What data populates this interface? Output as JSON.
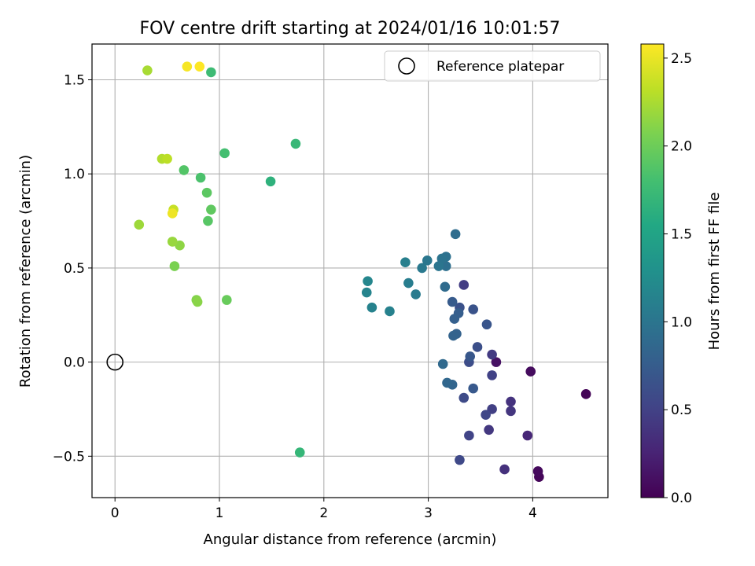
{
  "chart_data": {
    "type": "scatter",
    "title": "FOV centre drift starting at 2024/01/16 10:01:57",
    "xlabel": "Angular distance from reference (arcmin)",
    "ylabel": "Rotation from reference (arcmin)",
    "xlim": [
      -0.22,
      4.72
    ],
    "ylim": [
      -0.72,
      1.69
    ],
    "x_ticks": [
      0,
      1,
      2,
      3,
      4
    ],
    "x_tick_labels": [
      "0",
      "1",
      "2",
      "3",
      "4"
    ],
    "y_ticks": [
      -0.5,
      0.0,
      0.5,
      1.0,
      1.5
    ],
    "y_tick_labels": [
      "−0.5",
      "0.0",
      "0.5",
      "1.0",
      "1.5"
    ],
    "grid": true,
    "legend": {
      "placement": "top-right",
      "entries": [
        "Reference platepar"
      ]
    },
    "reference_point": {
      "x": 0,
      "y": 0
    },
    "colorbar": {
      "label": "Hours from first FF file",
      "colormap": "viridis",
      "range": [
        0,
        2.58
      ],
      "ticks": [
        0.0,
        0.5,
        1.0,
        1.5,
        2.0,
        2.5
      ],
      "tick_labels": [
        "0.0",
        "0.5",
        "1.0",
        "1.5",
        "2.0",
        "2.5"
      ]
    },
    "points": [
      {
        "x": 4.51,
        "y": -0.17,
        "c": 0.02
      },
      {
        "x": 4.06,
        "y": -0.61,
        "c": 0.04
      },
      {
        "x": 4.05,
        "y": -0.58,
        "c": 0.06
      },
      {
        "x": 3.98,
        "y": -0.05,
        "c": 0.08
      },
      {
        "x": 3.65,
        "y": 0.0,
        "c": 0.12
      },
      {
        "x": 3.95,
        "y": -0.39,
        "c": 0.28
      },
      {
        "x": 3.73,
        "y": -0.57,
        "c": 0.36
      },
      {
        "x": 3.79,
        "y": -0.21,
        "c": 0.38
      },
      {
        "x": 3.79,
        "y": -0.26,
        "c": 0.4
      },
      {
        "x": 3.58,
        "y": -0.36,
        "c": 0.42
      },
      {
        "x": 3.61,
        "y": 0.04,
        "c": 0.44
      },
      {
        "x": 3.34,
        "y": 0.41,
        "c": 0.46
      },
      {
        "x": 3.61,
        "y": -0.25,
        "c": 0.48
      },
      {
        "x": 3.61,
        "y": -0.07,
        "c": 0.5
      },
      {
        "x": 3.39,
        "y": -0.39,
        "c": 0.52
      },
      {
        "x": 3.55,
        "y": -0.28,
        "c": 0.54
      },
      {
        "x": 3.3,
        "y": -0.52,
        "c": 0.56
      },
      {
        "x": 3.34,
        "y": -0.19,
        "c": 0.58
      },
      {
        "x": 3.39,
        "y": 0.0,
        "c": 0.6
      },
      {
        "x": 3.47,
        "y": 0.08,
        "c": 0.62
      },
      {
        "x": 3.3,
        "y": 0.29,
        "c": 0.64
      },
      {
        "x": 3.43,
        "y": 0.28,
        "c": 0.66
      },
      {
        "x": 3.56,
        "y": 0.2,
        "c": 0.68
      },
      {
        "x": 3.4,
        "y": 0.03,
        "c": 0.7
      },
      {
        "x": 3.43,
        "y": -0.14,
        "c": 0.72
      },
      {
        "x": 3.23,
        "y": 0.32,
        "c": 0.74
      },
      {
        "x": 3.29,
        "y": 0.26,
        "c": 0.76
      },
      {
        "x": 3.25,
        "y": 0.23,
        "c": 0.78
      },
      {
        "x": 3.27,
        "y": 0.15,
        "c": 0.8
      },
      {
        "x": 3.24,
        "y": 0.14,
        "c": 0.82
      },
      {
        "x": 3.23,
        "y": -0.12,
        "c": 0.84
      },
      {
        "x": 3.18,
        "y": -0.11,
        "c": 0.86
      },
      {
        "x": 3.14,
        "y": -0.01,
        "c": 0.88
      },
      {
        "x": 3.16,
        "y": 0.4,
        "c": 0.9
      },
      {
        "x": 3.26,
        "y": 0.68,
        "c": 0.92
      },
      {
        "x": 3.17,
        "y": 0.51,
        "c": 0.94
      },
      {
        "x": 3.17,
        "y": 0.56,
        "c": 0.96
      },
      {
        "x": 3.13,
        "y": 0.55,
        "c": 0.98
      },
      {
        "x": 3.1,
        "y": 0.51,
        "c": 1.0
      },
      {
        "x": 2.99,
        "y": 0.54,
        "c": 1.02
      },
      {
        "x": 2.94,
        "y": 0.5,
        "c": 1.04
      },
      {
        "x": 2.88,
        "y": 0.36,
        "c": 1.06
      },
      {
        "x": 2.81,
        "y": 0.42,
        "c": 1.08
      },
      {
        "x": 2.78,
        "y": 0.53,
        "c": 1.1
      },
      {
        "x": 2.63,
        "y": 0.27,
        "c": 1.12
      },
      {
        "x": 2.46,
        "y": 0.29,
        "c": 1.14
      },
      {
        "x": 2.41,
        "y": 0.37,
        "c": 1.16
      },
      {
        "x": 2.42,
        "y": 0.43,
        "c": 1.18
      },
      {
        "x": 1.49,
        "y": 0.96,
        "c": 1.65
      },
      {
        "x": 1.77,
        "y": -0.48,
        "c": 1.7
      },
      {
        "x": 1.73,
        "y": 1.16,
        "c": 1.72
      },
      {
        "x": 0.92,
        "y": 1.54,
        "c": 1.76
      },
      {
        "x": 1.05,
        "y": 1.11,
        "c": 1.8
      },
      {
        "x": 0.82,
        "y": 0.98,
        "c": 1.84
      },
      {
        "x": 0.66,
        "y": 1.02,
        "c": 1.88
      },
      {
        "x": 0.89,
        "y": 0.75,
        "c": 1.9
      },
      {
        "x": 0.88,
        "y": 0.9,
        "c": 1.92
      },
      {
        "x": 0.92,
        "y": 0.81,
        "c": 1.94
      },
      {
        "x": 1.07,
        "y": 0.33,
        "c": 1.98
      },
      {
        "x": 0.57,
        "y": 0.51,
        "c": 2.06
      },
      {
        "x": 0.78,
        "y": 0.33,
        "c": 2.1
      },
      {
        "x": 0.79,
        "y": 0.32,
        "c": 2.12
      },
      {
        "x": 0.62,
        "y": 0.62,
        "c": 2.14
      },
      {
        "x": 0.55,
        "y": 0.64,
        "c": 2.18
      },
      {
        "x": 0.23,
        "y": 0.73,
        "c": 2.2
      },
      {
        "x": 0.31,
        "y": 1.55,
        "c": 2.24
      },
      {
        "x": 0.45,
        "y": 1.08,
        "c": 2.28
      },
      {
        "x": 0.5,
        "y": 1.08,
        "c": 2.32
      },
      {
        "x": 0.56,
        "y": 0.81,
        "c": 2.36
      },
      {
        "x": 0.55,
        "y": 0.79,
        "c": 2.52
      },
      {
        "x": 0.69,
        "y": 1.57,
        "c": 2.55
      },
      {
        "x": 0.81,
        "y": 1.57,
        "c": 2.58
      }
    ]
  }
}
